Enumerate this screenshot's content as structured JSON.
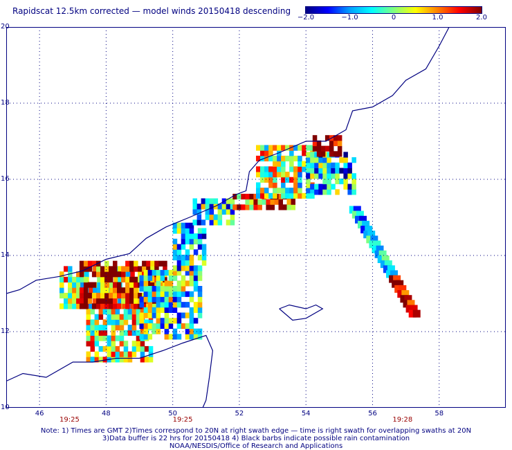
{
  "title": "Rapidscat 12.5km corrected — model winds 20150418 descending",
  "colorbar": {
    "ticks": [
      "−2.0",
      "−1.0",
      "0",
      "1.0",
      "2.0"
    ],
    "tick_values": [
      -2.0,
      -1.0,
      0,
      1.0,
      2.0
    ],
    "range": [
      -2.0,
      2.0
    ],
    "colors": [
      "#000080",
      "#0000ff",
      "#00a0ff",
      "#00ffff",
      "#80ff80",
      "#ffff00",
      "#ff8000",
      "#ff0000",
      "#800000"
    ]
  },
  "map": {
    "lon_range": [
      45,
      60
    ],
    "lat_range": [
      10,
      20
    ],
    "x_ticks": [
      "46",
      "48",
      "50",
      "52",
      "54",
      "56",
      "58"
    ],
    "x_tick_values": [
      46,
      48,
      50,
      52,
      54,
      56,
      58
    ],
    "y_ticks": [
      "20",
      "18",
      "16",
      "14",
      "12",
      "10"
    ],
    "y_tick_values": [
      20,
      18,
      16,
      14,
      12,
      10
    ],
    "time_labels": [
      "19:25",
      "19:25",
      "19:28"
    ],
    "time_label_lons": [
      46.9,
      50.3,
      56.9
    ],
    "coast_color": "#000080",
    "grid_color": "#000080"
  },
  "footer": {
    "line1": "Note: 1) Times are GMT 2)Times correspond to 20N at right swath edge — time is right swath for overlapping swaths at 20N",
    "line2": "3)Data buffer is 22 hrs for 20150418 4) Black barbs indicate possible rain contamination",
    "line3": "NOAA/NESDIS/Office of Research and Applications"
  }
}
